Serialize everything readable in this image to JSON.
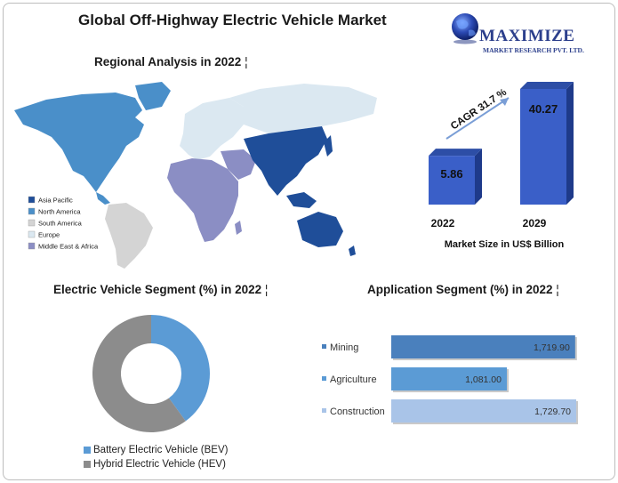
{
  "title": "Global Off-Highway Electric Vehicle Market",
  "logo": {
    "name": "MAXIMIZE",
    "tagline": "MARKET RESEARCH PVT. LTD.",
    "icon": "globe-icon"
  },
  "regional": {
    "title": "Regional Analysis in  2022",
    "legend": [
      {
        "label": "Asia Pacific",
        "color": "#1f4e99"
      },
      {
        "label": "North America",
        "color": "#4a8fc9"
      },
      {
        "label": "South America",
        "color": "#d4d4d4"
      },
      {
        "label": "Europe",
        "color": "#dbe8f1"
      },
      {
        "label": "Middle East & Africa",
        "color": "#8b8ec4"
      }
    ]
  },
  "chart_data": [
    {
      "type": "bar",
      "categories": [
        "2022",
        "2029"
      ],
      "values": [
        5.86,
        40.27
      ],
      "value_labels": [
        "5.86",
        "40.27"
      ],
      "xlabel": "Market Size in US$ Billion",
      "annotation": "CAGR 31.7 %",
      "color": "#3a5fc8"
    },
    {
      "type": "pie",
      "title": "Electric Vehicle Segment (%) in  2022",
      "labels": [
        "Battery Electric Vehicle (BEV)",
        "Hybrid Electric Vehicle (HEV)"
      ],
      "values": [
        40,
        60
      ],
      "colors": [
        "#5b9bd5",
        "#8c8c8c"
      ]
    },
    {
      "type": "bar",
      "orientation": "horizontal",
      "title": "Application Segment (%) in 2022",
      "categories": [
        "Mining",
        "Agriculture",
        "Construction"
      ],
      "values": [
        1719.9,
        1081.0,
        1729.7
      ],
      "value_labels": [
        "1,719.90",
        "1,081.00",
        "1,729.70"
      ],
      "colors": [
        "#4a80bd",
        "#5b9bd5",
        "#a9c4e8"
      ]
    }
  ]
}
